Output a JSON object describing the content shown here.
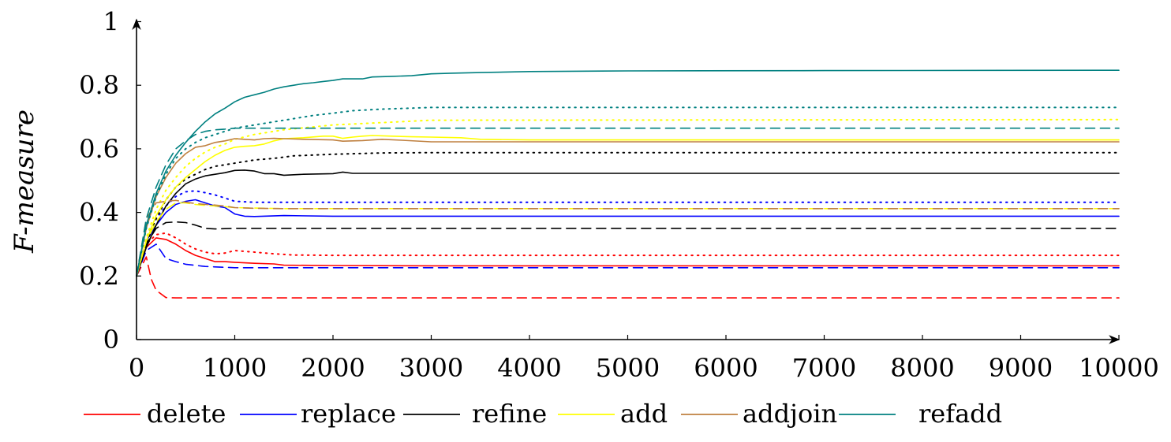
{
  "chart_data": {
    "type": "line",
    "title": "",
    "xlabel": "",
    "ylabel": "F-measure",
    "xlim": [
      0,
      10000
    ],
    "ylim": [
      0,
      1
    ],
    "xticks": [
      0,
      1000,
      2000,
      3000,
      4000,
      5000,
      6000,
      7000,
      8000,
      9000,
      10000
    ],
    "yticks": [
      0,
      0.2,
      0.4,
      0.6,
      0.8,
      1
    ],
    "ytick_labels": [
      "0",
      "0.2",
      "0.4",
      "0.6",
      "0.8",
      "1"
    ],
    "grid": false,
    "legend_position": "bottom",
    "legend": [
      {
        "label": "delete",
        "color": "#ff0000"
      },
      {
        "label": "replace",
        "color": "#0000ff"
      },
      {
        "label": "refine",
        "color": "#000000"
      },
      {
        "label": "add",
        "color": "#ffff00"
      },
      {
        "label": "addjoin",
        "color": "#bf8040"
      },
      {
        "label": "refadd",
        "color": "#008080"
      }
    ],
    "series": [
      {
        "name": "delete",
        "style": "solid",
        "color": "#ff0000",
        "x": [
          0,
          100,
          200,
          300,
          400,
          500,
          600,
          700,
          800,
          900,
          1000,
          1200,
          1400,
          1500,
          2000,
          3000,
          5000,
          10000
        ],
        "y": [
          0.2,
          0.29,
          0.32,
          0.315,
          0.3,
          0.28,
          0.265,
          0.255,
          0.245,
          0.245,
          0.243,
          0.24,
          0.238,
          0.234,
          0.233,
          0.232,
          0.232,
          0.232
        ]
      },
      {
        "name": "delete",
        "style": "dashed",
        "color": "#ff0000",
        "x": [
          0,
          100,
          150,
          200,
          300,
          400,
          1000,
          10000
        ],
        "y": [
          0.2,
          0.26,
          0.19,
          0.155,
          0.132,
          0.131,
          0.131,
          0.131
        ]
      },
      {
        "name": "delete",
        "style": "dotted",
        "color": "#ff0000",
        "x": [
          0,
          100,
          200,
          300,
          400,
          500,
          600,
          700,
          800,
          900,
          1000,
          1200,
          1400,
          1600,
          2000,
          10000
        ],
        "y": [
          0.2,
          0.3,
          0.33,
          0.335,
          0.32,
          0.3,
          0.285,
          0.275,
          0.27,
          0.272,
          0.28,
          0.275,
          0.27,
          0.266,
          0.265,
          0.265
        ]
      },
      {
        "name": "replace",
        "style": "solid",
        "color": "#0000ff",
        "x": [
          0,
          100,
          200,
          300,
          400,
          500,
          600,
          700,
          800,
          900,
          1000,
          1100,
          1200,
          1500,
          2000,
          3000,
          10000
        ],
        "y": [
          0.2,
          0.31,
          0.36,
          0.4,
          0.425,
          0.435,
          0.44,
          0.43,
          0.42,
          0.415,
          0.395,
          0.388,
          0.387,
          0.39,
          0.388,
          0.388,
          0.388
        ]
      },
      {
        "name": "replace",
        "style": "dashed",
        "color": "#0000ff",
        "x": [
          0,
          100,
          200,
          300,
          400,
          500,
          700,
          1000,
          10000
        ],
        "y": [
          0.2,
          0.28,
          0.3,
          0.255,
          0.245,
          0.237,
          0.23,
          0.226,
          0.226
        ]
      },
      {
        "name": "replace",
        "style": "dotted",
        "color": "#0000ff",
        "x": [
          0,
          100,
          200,
          300,
          400,
          500,
          600,
          700,
          800,
          900,
          1000,
          1200,
          1500,
          10000
        ],
        "y": [
          0.2,
          0.32,
          0.38,
          0.42,
          0.45,
          0.465,
          0.468,
          0.462,
          0.455,
          0.445,
          0.435,
          0.432,
          0.432,
          0.432
        ]
      },
      {
        "name": "refine",
        "style": "solid",
        "color": "#000000",
        "x": [
          0,
          100,
          200,
          300,
          400,
          500,
          600,
          700,
          800,
          900,
          1000,
          1100,
          1200,
          1300,
          1400,
          1500,
          1700,
          2000,
          2100,
          2200,
          2500,
          3000,
          10000
        ],
        "y": [
          0.2,
          0.29,
          0.36,
          0.42,
          0.46,
          0.49,
          0.505,
          0.515,
          0.52,
          0.525,
          0.532,
          0.533,
          0.53,
          0.522,
          0.522,
          0.517,
          0.52,
          0.522,
          0.527,
          0.523,
          0.523,
          0.523,
          0.523
        ]
      },
      {
        "name": "refine",
        "style": "dashed",
        "color": "#000000",
        "x": [
          0,
          100,
          200,
          300,
          400,
          500,
          600,
          700,
          800,
          1000,
          10000
        ],
        "y": [
          0.2,
          0.3,
          0.35,
          0.368,
          0.37,
          0.368,
          0.36,
          0.35,
          0.348,
          0.35,
          0.35
        ]
      },
      {
        "name": "refine",
        "style": "dotted",
        "color": "#000000",
        "x": [
          0,
          100,
          200,
          300,
          400,
          500,
          600,
          700,
          800,
          900,
          1000,
          1200,
          1400,
          1600,
          2000,
          2500,
          3000,
          10000
        ],
        "y": [
          0.2,
          0.3,
          0.38,
          0.44,
          0.48,
          0.505,
          0.52,
          0.535,
          0.545,
          0.55,
          0.555,
          0.565,
          0.57,
          0.578,
          0.583,
          0.587,
          0.588,
          0.588
        ]
      },
      {
        "name": "add",
        "style": "solid",
        "color": "#ffff00",
        "x": [
          0,
          100,
          200,
          300,
          400,
          500,
          600,
          700,
          800,
          900,
          1000,
          1100,
          1200,
          1300,
          1400,
          1500,
          1700,
          1900,
          2000,
          2100,
          2200,
          2300,
          2400,
          2600,
          2800,
          3000,
          3300,
          3500,
          4000,
          10000
        ],
        "y": [
          0.2,
          0.31,
          0.39,
          0.44,
          0.48,
          0.51,
          0.535,
          0.56,
          0.58,
          0.595,
          0.605,
          0.608,
          0.61,
          0.615,
          0.625,
          0.632,
          0.635,
          0.64,
          0.64,
          0.633,
          0.637,
          0.64,
          0.642,
          0.64,
          0.638,
          0.637,
          0.635,
          0.63,
          0.628,
          0.628
        ]
      },
      {
        "name": "add",
        "style": "dashed",
        "color": "#ffff00",
        "x": [
          0,
          100,
          200,
          300,
          400,
          500,
          600,
          700,
          800,
          900,
          1000,
          1500,
          10000
        ],
        "y": [
          0.2,
          0.31,
          0.37,
          0.41,
          0.43,
          0.43,
          0.425,
          0.422,
          0.42,
          0.418,
          0.415,
          0.412,
          0.412
        ]
      },
      {
        "name": "add",
        "style": "dotted",
        "color": "#ffff00",
        "x": [
          0,
          100,
          200,
          300,
          400,
          500,
          600,
          700,
          800,
          900,
          1000,
          1200,
          1500,
          2000,
          3000,
          10000
        ],
        "y": [
          0.2,
          0.32,
          0.41,
          0.47,
          0.51,
          0.545,
          0.57,
          0.59,
          0.605,
          0.615,
          0.63,
          0.645,
          0.66,
          0.675,
          0.69,
          0.692
        ]
      },
      {
        "name": "addjoin",
        "style": "solid",
        "color": "#bf8040",
        "x": [
          0,
          100,
          200,
          300,
          400,
          500,
          600,
          700,
          800,
          900,
          1000,
          1100,
          1200,
          1300,
          1400,
          1500,
          1700,
          2000,
          2100,
          2300,
          2500,
          2700,
          3000,
          10000
        ],
        "y": [
          0.2,
          0.35,
          0.45,
          0.51,
          0.555,
          0.585,
          0.605,
          0.61,
          0.62,
          0.625,
          0.632,
          0.63,
          0.628,
          0.632,
          0.633,
          0.632,
          0.63,
          0.628,
          0.624,
          0.626,
          0.63,
          0.627,
          0.622,
          0.622
        ]
      },
      {
        "name": "addjoin",
        "style": "dashed",
        "color": "#bf8040",
        "x": [
          0,
          100,
          200,
          300,
          400,
          500,
          600,
          700,
          800,
          900,
          1000,
          1200,
          1500,
          10000
        ],
        "y": [
          0.2,
          0.38,
          0.43,
          0.435,
          0.438,
          0.432,
          0.428,
          0.425,
          0.423,
          0.42,
          0.415,
          0.413,
          0.412,
          0.412
        ]
      },
      {
        "name": "refadd",
        "style": "solid",
        "color": "#008080",
        "x": [
          0,
          100,
          200,
          300,
          400,
          500,
          600,
          700,
          800,
          900,
          1000,
          1100,
          1200,
          1300,
          1400,
          1500,
          1600,
          1700,
          1800,
          1900,
          2000,
          2100,
          2200,
          2300,
          2400,
          2600,
          2800,
          3000,
          3200,
          3500,
          4000,
          5000,
          7000,
          10000
        ],
        "y": [
          0.2,
          0.36,
          0.46,
          0.53,
          0.58,
          0.62,
          0.655,
          0.685,
          0.71,
          0.728,
          0.748,
          0.762,
          0.77,
          0.778,
          0.788,
          0.795,
          0.8,
          0.805,
          0.808,
          0.812,
          0.815,
          0.82,
          0.82,
          0.82,
          0.826,
          0.828,
          0.83,
          0.836,
          0.838,
          0.84,
          0.843,
          0.845,
          0.846,
          0.847
        ]
      },
      {
        "name": "refadd",
        "style": "dashed",
        "color": "#008080",
        "x": [
          0,
          100,
          200,
          300,
          400,
          500,
          600,
          700,
          800,
          900,
          1000,
          2000,
          10000
        ],
        "y": [
          0.2,
          0.38,
          0.48,
          0.55,
          0.6,
          0.625,
          0.645,
          0.655,
          0.66,
          0.662,
          0.665,
          0.665,
          0.665
        ]
      },
      {
        "name": "refadd",
        "style": "dotted",
        "color": "#008080",
        "x": [
          0,
          100,
          200,
          300,
          400,
          500,
          600,
          700,
          800,
          900,
          1000,
          1200,
          1400,
          1600,
          1800,
          2000,
          2200,
          2500,
          3000,
          10000
        ],
        "y": [
          0.2,
          0.35,
          0.45,
          0.52,
          0.57,
          0.6,
          0.62,
          0.635,
          0.645,
          0.655,
          0.665,
          0.675,
          0.685,
          0.695,
          0.705,
          0.712,
          0.72,
          0.725,
          0.73,
          0.73
        ]
      }
    ]
  }
}
